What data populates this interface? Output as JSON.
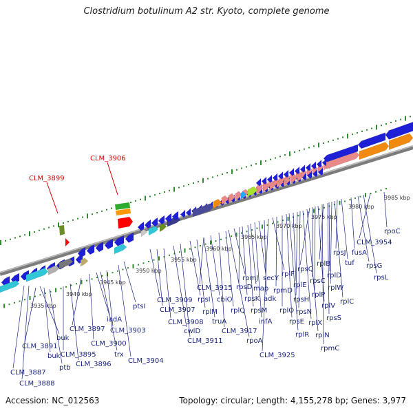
{
  "title": "Clostridium botulinum A2 str. Kyoto, complete genome",
  "accession": "Accession: NC_012563",
  "meta": "Topology: circular; Length: 4,155,278 bp; Genes: 3,977",
  "colors": {
    "backbone": "#8a8a8a",
    "gene_blue": "#1f1fd6",
    "gene_pink": "#e88a8a",
    "gene_orange": "#f08a10",
    "gene_cyan": "#33c6d6",
    "dot_green": "#2e8b2e",
    "highlight_red": "#cc0000",
    "label_line": "#1a237e"
  },
  "highlighted": [
    {
      "label": "CLM_3899"
    },
    {
      "label": "CLM_3906"
    }
  ],
  "ticks": [
    "3935 kbp",
    "3940 kbp",
    "3945 kbp",
    "3950 kbp",
    "3955 kbp",
    "3960 kbp",
    "3965 kbp",
    "3970 kbp",
    "3975 kbp",
    "3980 kbp",
    "3985 kbp"
  ],
  "labels": [
    "CLM_3887",
    "CLM_3888",
    "CLM_3891",
    "buk",
    "ptb",
    "buk",
    "CLM_3895",
    "CLM_3896",
    "CLM_3897",
    "CLM_3900",
    "iadA",
    "trx",
    "CLM_3903",
    "ptsI",
    "CLM_3904",
    "CLM_3909",
    "CLM_3907",
    "CLM_3908",
    "cwlD",
    "CLM_3911",
    "rpsI",
    "rplM",
    "CLM_3915",
    "truA",
    "cbiO",
    "CLM_3917",
    "rplQ",
    "rpoA",
    "rpmJ",
    "rpsD",
    "rpsK",
    "rpsM",
    "map",
    "infA",
    "secY",
    "adk",
    "CLM_3925",
    "rplF",
    "rpmD",
    "rplO",
    "rpsE",
    "rplR",
    "rplE",
    "rpsH",
    "rpsN",
    "rplX",
    "rplN",
    "rpsQ",
    "rpsC",
    "rplP",
    "rplV",
    "rpmC",
    "rplB",
    "rpsS",
    "rplD",
    "rplW",
    "rplC",
    "rpsJ",
    "tuf",
    "fusA",
    "rpsG",
    "rpsL",
    "CLM_3954",
    "rpoC"
  ]
}
